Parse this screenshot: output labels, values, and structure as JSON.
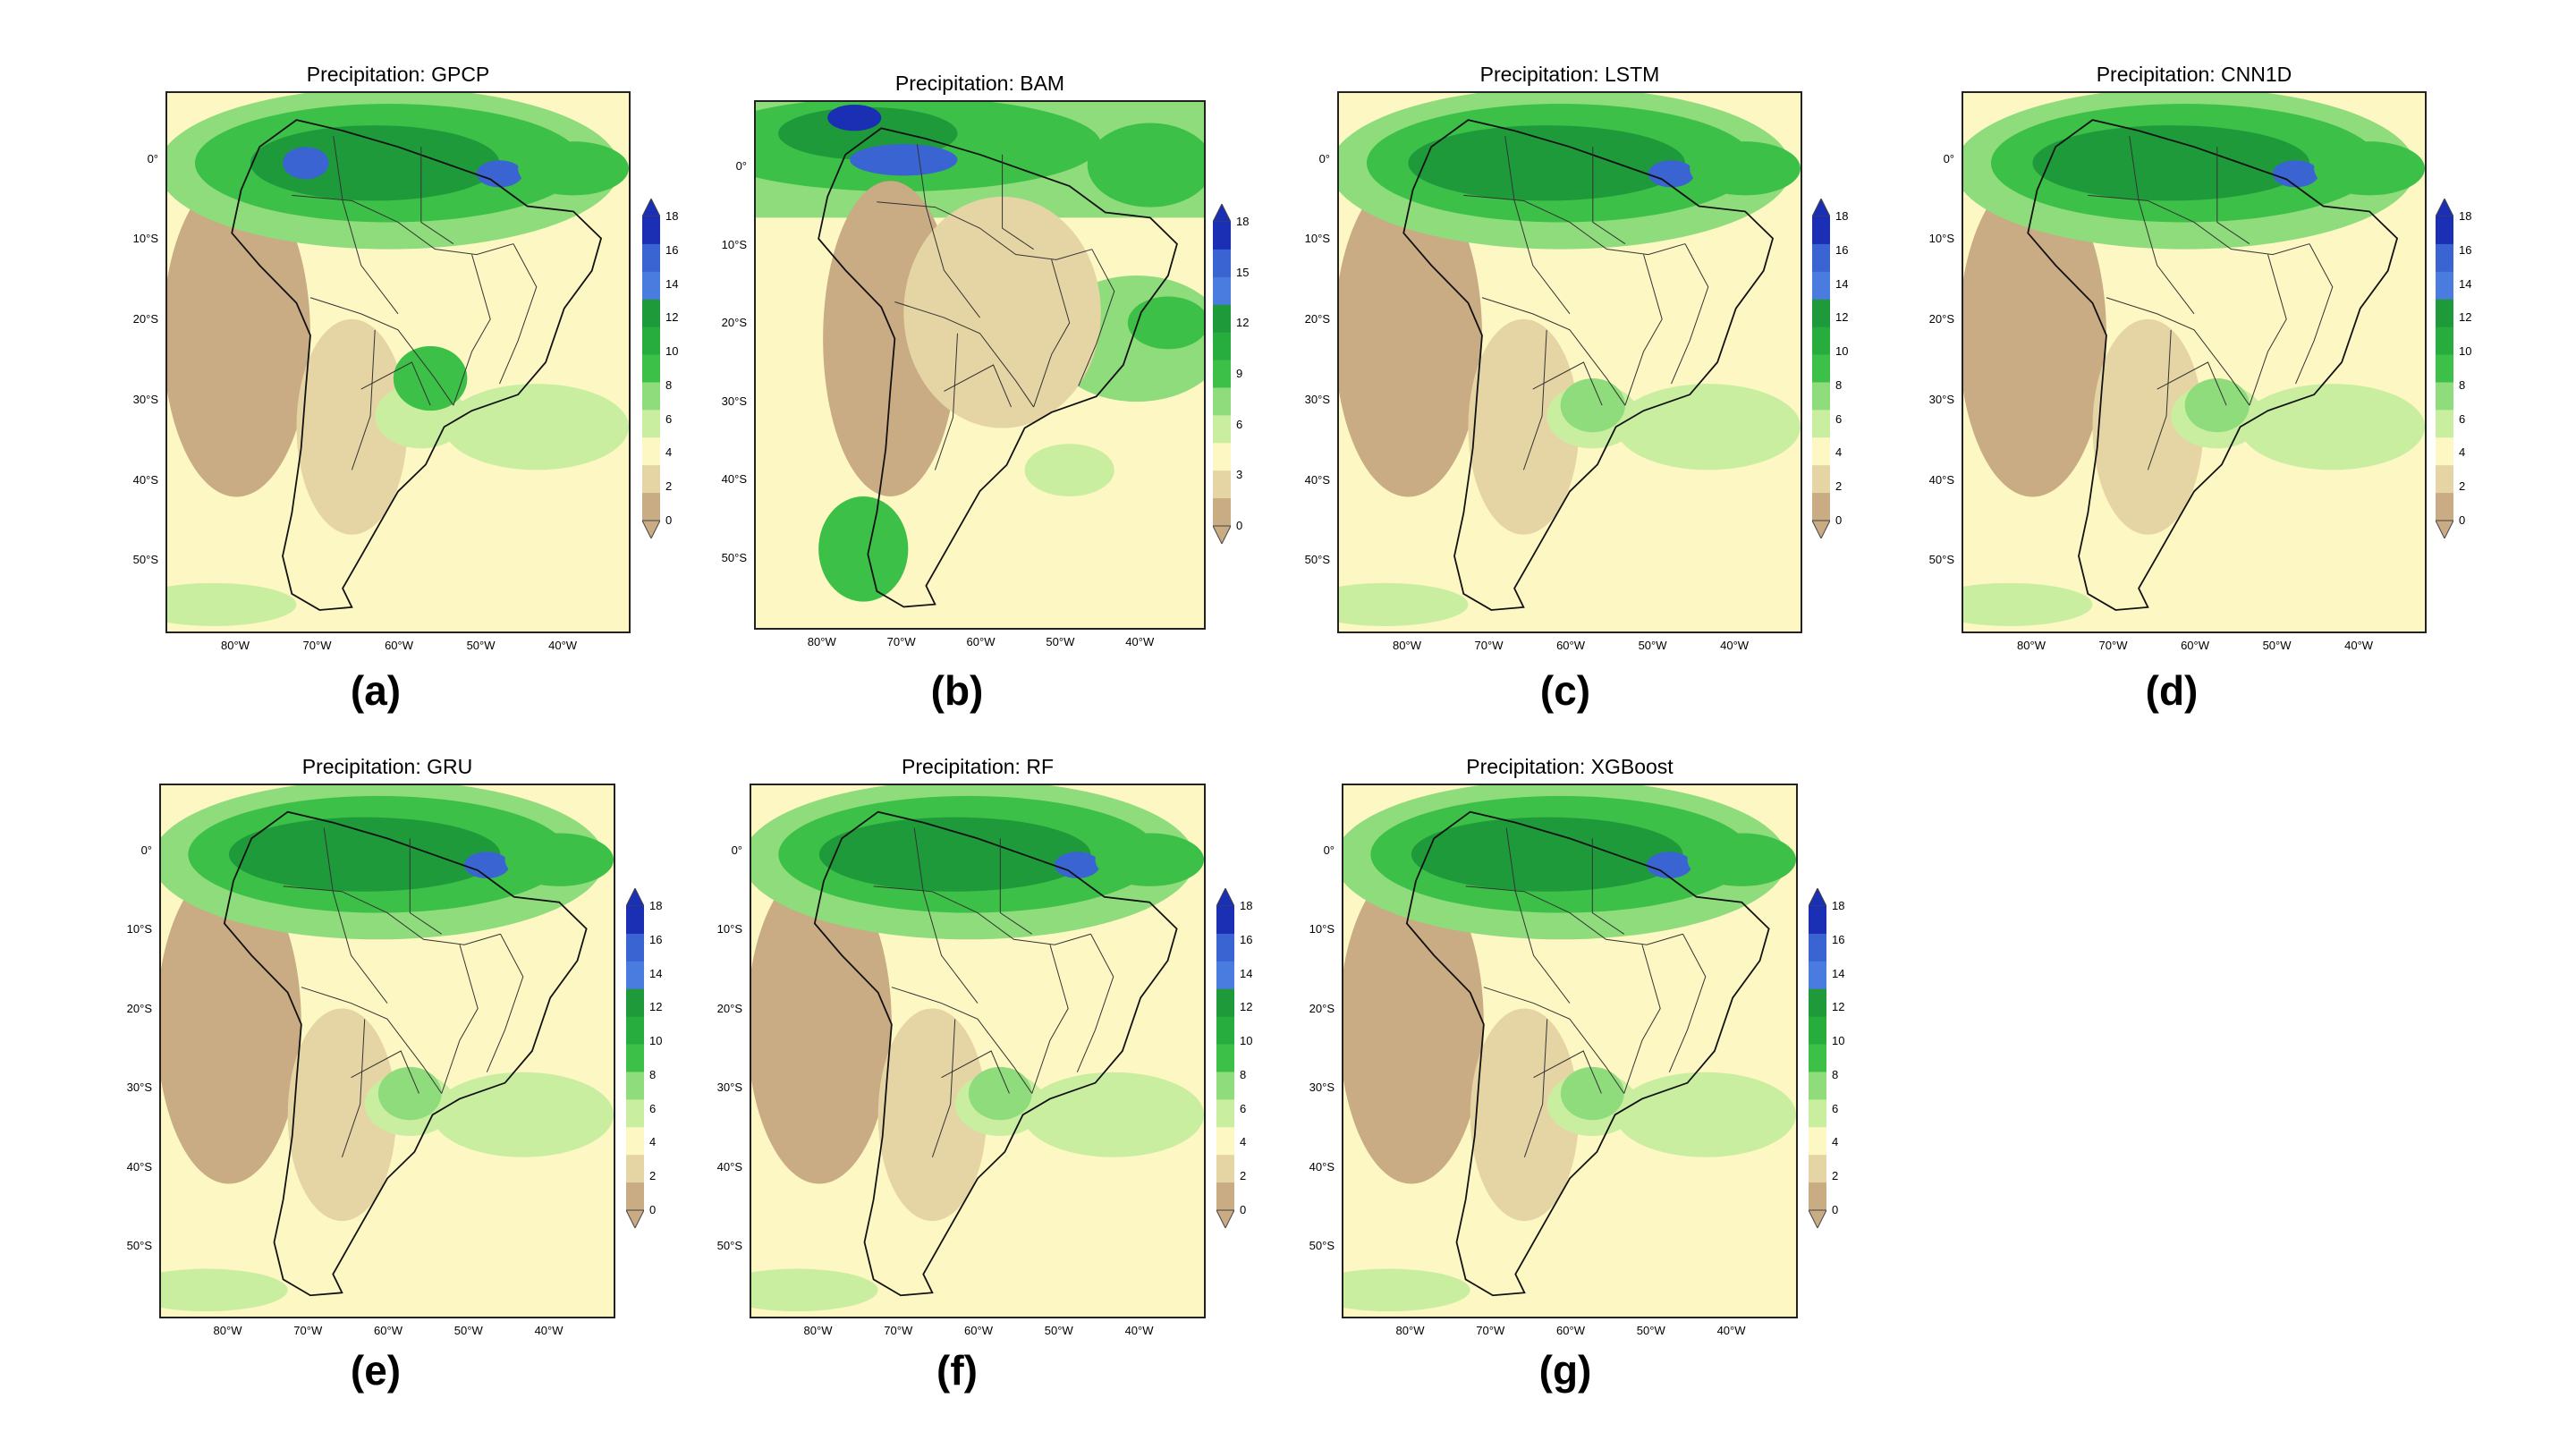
{
  "figure": {
    "panels": [
      {
        "id": "a",
        "title": "Precipitation: GPCP",
        "letter": "(a)",
        "colorbar_ticks": [
          "18",
          "16",
          "14",
          "12",
          "10",
          "8",
          "6",
          "4",
          "2",
          "0"
        ]
      },
      {
        "id": "b",
        "title": "Precipitation: BAM",
        "letter": "(b)",
        "colorbar_ticks": [
          "18",
          "15",
          "12",
          "9",
          "6",
          "3",
          "0"
        ]
      },
      {
        "id": "c",
        "title": "Precipitation: LSTM",
        "letter": "(c)",
        "colorbar_ticks": [
          "18",
          "16",
          "14",
          "12",
          "10",
          "8",
          "6",
          "4",
          "2",
          "0"
        ]
      },
      {
        "id": "d",
        "title": "Precipitation: CNN1D",
        "letter": "(d)",
        "colorbar_ticks": [
          "18",
          "16",
          "14",
          "12",
          "10",
          "8",
          "6",
          "4",
          "2",
          "0"
        ]
      },
      {
        "id": "e",
        "title": "Precipitation: GRU",
        "letter": "(e)",
        "colorbar_ticks": [
          "18",
          "16",
          "14",
          "12",
          "10",
          "8",
          "6",
          "4",
          "2",
          "0"
        ]
      },
      {
        "id": "f",
        "title": "Precipitation: RF",
        "letter": "(f)",
        "colorbar_ticks": [
          "18",
          "16",
          "14",
          "12",
          "10",
          "8",
          "6",
          "4",
          "2",
          "0"
        ]
      },
      {
        "id": "g",
        "title": "Precipitation: XGBoost",
        "letter": "(g)",
        "colorbar_ticks": [
          "18",
          "16",
          "14",
          "12",
          "10",
          "8",
          "6",
          "4",
          "2",
          "0"
        ]
      }
    ],
    "lat_ticks": [
      "0°",
      "10°S",
      "20°S",
      "30°S",
      "40°S",
      "50°S"
    ],
    "lon_ticks": [
      "80°W",
      "70°W",
      "60°W",
      "50°W",
      "40°W"
    ],
    "colors": {
      "dry": "#c9ab84",
      "light": "#e5d4a4",
      "yellow": "#fdf7c3",
      "pale_green": "#c9eea0",
      "light_green": "#8fdc7c",
      "green": "#3cc047",
      "dark_green": "#1f9a3a",
      "blue": "#3a64d2",
      "dark_blue": "#1b2fb5"
    }
  }
}
